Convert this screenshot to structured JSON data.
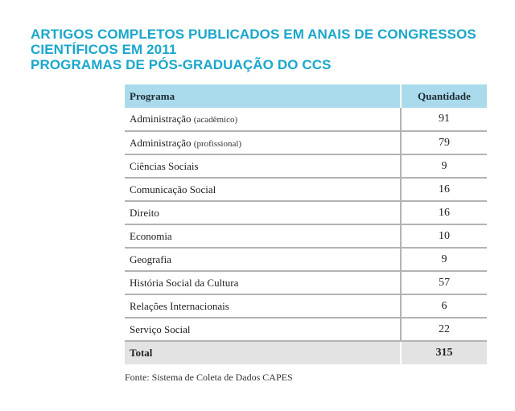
{
  "title": {
    "line1": "ARTIGOS COMPLETOS PUBLICADOS EM ANAIS DE CONGRESSOS",
    "line2": "CIENTÍFICOS EM 2011",
    "line3": "PROGRAMAS DE PÓS-GRADUAÇÃO DO CCS"
  },
  "table": {
    "headers": {
      "programa": "Programa",
      "quantidade": "Quantidade"
    },
    "rows": [
      {
        "programa": "Administração",
        "note": "(acadêmico)",
        "quantidade": "91"
      },
      {
        "programa": "Administração",
        "note": "(profissional)",
        "quantidade": "79"
      },
      {
        "programa": "Ciências Sociais",
        "quantidade": "9"
      },
      {
        "programa": "Comunicação Social",
        "quantidade": "16"
      },
      {
        "programa": "Direito",
        "quantidade": "16"
      },
      {
        "programa": "Economia",
        "quantidade": "10"
      },
      {
        "programa": "Geografia",
        "quantidade": "9"
      },
      {
        "programa": "História Social da Cultura",
        "quantidade": "57"
      },
      {
        "programa": "Relações Internacionais",
        "quantidade": "6"
      },
      {
        "programa": "Serviço Social",
        "quantidade": "22"
      }
    ],
    "total": {
      "label": "Total",
      "quantidade": "315"
    }
  },
  "source": "Fonte: Sistema de Coleta de Dados CAPES",
  "colors": {
    "title": "#1aa7cc",
    "header_bg": "#a9dbec",
    "total_bg": "#e3e3e3",
    "rule": "#b3b3b3"
  }
}
